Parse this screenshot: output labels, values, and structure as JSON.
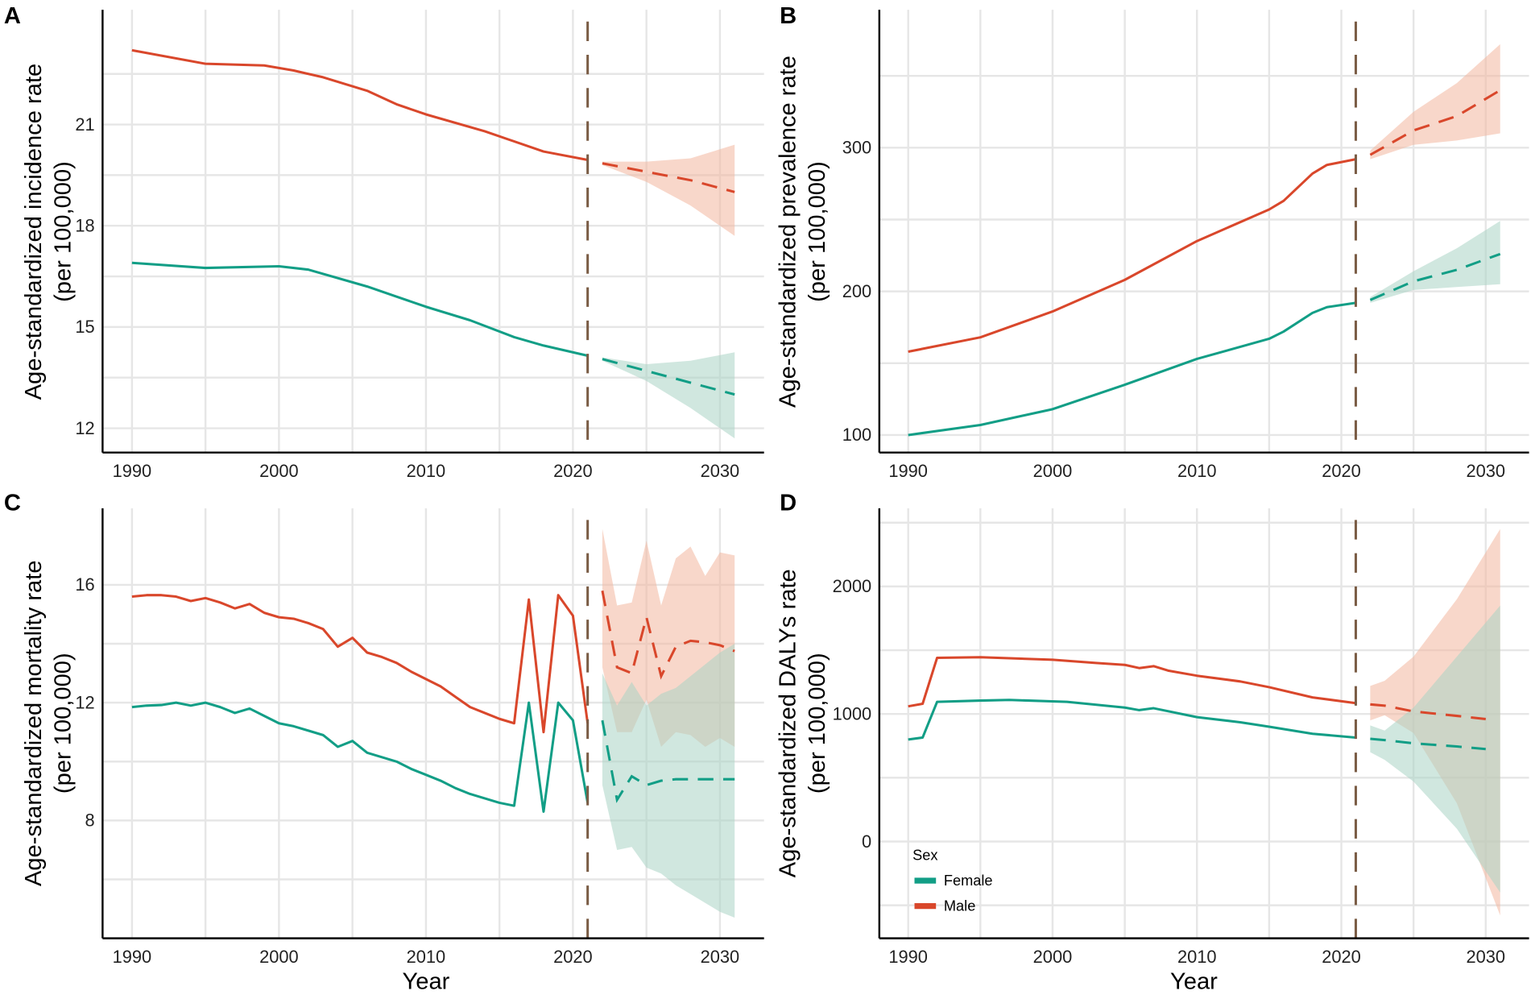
{
  "colors": {
    "Male": "#d9472b",
    "Female": "#129e86",
    "Male_ci": "#f2b79f",
    "Female_ci": "#a9d3c5",
    "vline": "#7a5c45",
    "grid": "#e6e6e6"
  },
  "legend": {
    "title": "Sex",
    "entries": [
      "Female",
      "Male"
    ]
  },
  "chart_data": [
    {
      "panel": "A",
      "type": "line",
      "xlabel": "",
      "ylabel": "Age-standardized incidence rate",
      "ylabel2": "(per 100,000)",
      "xlim": [
        1988,
        2033
      ],
      "ylim": [
        11.28,
        24.4
      ],
      "xticks": [
        1990,
        2000,
        2010,
        2020,
        2030
      ],
      "yticks": [
        12,
        15,
        18,
        21
      ],
      "ygrid": [
        12,
        13.5,
        15,
        16.5,
        18,
        19.5,
        21,
        22.5
      ],
      "vline": 2021,
      "series": [
        {
          "name": "Male",
          "x": [
            1990,
            1995,
            1999,
            2001,
            2003,
            2006,
            2008,
            2010,
            2014,
            2018,
            2021
          ],
          "y": [
            23.2,
            22.8,
            22.75,
            22.6,
            22.4,
            22.0,
            21.6,
            21.3,
            20.8,
            20.2,
            19.95
          ],
          "forecast": {
            "x": [
              2022,
              2025,
              2028,
              2031
            ],
            "y": [
              19.85,
              19.6,
              19.35,
              19.0
            ],
            "upper": [
              19.9,
              19.9,
              20.0,
              20.4
            ],
            "lower": [
              19.8,
              19.3,
              18.6,
              17.7
            ]
          }
        },
        {
          "name": "Female",
          "x": [
            1990,
            1995,
            2000,
            2002,
            2006,
            2008,
            2010,
            2013,
            2016,
            2018,
            2021
          ],
          "y": [
            16.9,
            16.75,
            16.8,
            16.7,
            16.2,
            15.9,
            15.6,
            15.2,
            14.7,
            14.45,
            14.15
          ],
          "forecast": {
            "x": [
              2022,
              2025,
              2028,
              2031
            ],
            "y": [
              14.05,
              13.7,
              13.35,
              13.0
            ],
            "upper": [
              14.1,
              13.9,
              14.0,
              14.25
            ],
            "lower": [
              14.0,
              13.4,
              12.6,
              11.7
            ]
          }
        }
      ]
    },
    {
      "panel": "B",
      "type": "line",
      "xlabel": "",
      "ylabel": "Age-standardized prevalence rate",
      "ylabel2": "(per 100,000)",
      "xlim": [
        1988,
        2033
      ],
      "ylim": [
        87.8,
        396
      ],
      "xticks": [
        1990,
        2000,
        2010,
        2020,
        2030
      ],
      "yticks": [
        100,
        200,
        300
      ],
      "ygrid": [
        100,
        150,
        200,
        250,
        300,
        350
      ],
      "vline": 2021,
      "series": [
        {
          "name": "Male",
          "x": [
            1990,
            1995,
            2000,
            2005,
            2010,
            2015,
            2016,
            2018,
            2019,
            2021
          ],
          "y": [
            158,
            168,
            186,
            208,
            235,
            257,
            263,
            282,
            288,
            292
          ],
          "forecast": {
            "x": [
              2022,
              2025,
              2028,
              2031
            ],
            "y": [
              295,
              312,
              322,
              340
            ],
            "upper": [
              298,
              325,
              345,
              372
            ],
            "lower": [
              292,
              302,
              305,
              310
            ]
          }
        },
        {
          "name": "Female",
          "x": [
            1990,
            1995,
            2000,
            2005,
            2010,
            2015,
            2016,
            2018,
            2019,
            2021
          ],
          "y": [
            100,
            107,
            118,
            135,
            153,
            167,
            172,
            185,
            189,
            192
          ],
          "forecast": {
            "x": [
              2022,
              2025,
              2028,
              2031
            ],
            "y": [
              194,
              207,
              215,
              226
            ],
            "upper": [
              196,
              214,
              230,
              249
            ],
            "lower": [
              192,
              201,
              203,
              205
            ]
          }
        }
      ]
    },
    {
      "panel": "C",
      "type": "line",
      "xlabel": "Year",
      "ylabel": "Age-standardized mortality rate",
      "ylabel2": "(per 100,000)",
      "xlim": [
        1988,
        2033
      ],
      "ylim": [
        4.0,
        18.6
      ],
      "xticks": [
        1990,
        2000,
        2010,
        2020,
        2030
      ],
      "yticks": [
        8,
        12,
        16
      ],
      "ygrid": [
        6,
        8,
        10,
        12,
        14,
        16
      ],
      "vline": 2021,
      "series": [
        {
          "name": "Male",
          "x": [
            1990,
            1991,
            1992,
            1993,
            1994,
            1995,
            1996,
            1997,
            1998,
            1999,
            2000,
            2001,
            2002,
            2003,
            2004,
            2005,
            2006,
            2007,
            2008,
            2009,
            2010,
            2011,
            2012,
            2013,
            2014,
            2015,
            2016,
            2017,
            2018,
            2019,
            2020,
            2021
          ],
          "y": [
            15.6,
            15.65,
            15.65,
            15.6,
            15.45,
            15.55,
            15.4,
            15.2,
            15.35,
            15.05,
            14.9,
            14.85,
            14.7,
            14.5,
            13.9,
            14.2,
            13.7,
            13.55,
            13.35,
            13.05,
            12.8,
            12.55,
            12.2,
            11.85,
            11.65,
            11.45,
            11.3,
            15.5,
            11.0,
            15.65,
            14.95,
            11.3
          ],
          "forecast": {
            "x": [
              2022,
              2023,
              2024,
              2025,
              2026,
              2027,
              2028,
              2029,
              2030,
              2031
            ],
            "y": [
              15.8,
              13.2,
              13.0,
              14.9,
              12.9,
              13.9,
              14.1,
              14.05,
              13.95,
              13.75
            ],
            "upper": [
              17.9,
              15.3,
              15.4,
              17.5,
              15.3,
              16.9,
              17.3,
              16.3,
              17.1,
              17.0
            ],
            "lower": [
              13.2,
              11.0,
              11.0,
              12.1,
              10.5,
              11.0,
              10.9,
              10.5,
              10.8,
              10.5
            ]
          }
        },
        {
          "name": "Female",
          "x": [
            1990,
            1991,
            1992,
            1993,
            1994,
            1995,
            1996,
            1997,
            1998,
            1999,
            2000,
            2001,
            2002,
            2003,
            2004,
            2005,
            2006,
            2007,
            2008,
            2009,
            2010,
            2011,
            2012,
            2013,
            2014,
            2015,
            2016,
            2017,
            2018,
            2019,
            2020,
            2021
          ],
          "y": [
            11.85,
            11.9,
            11.92,
            12.0,
            11.9,
            12.0,
            11.85,
            11.65,
            11.8,
            11.55,
            11.3,
            11.2,
            11.05,
            10.9,
            10.5,
            10.7,
            10.3,
            10.15,
            10.0,
            9.75,
            9.55,
            9.35,
            9.1,
            8.9,
            8.75,
            8.6,
            8.5,
            12.0,
            8.3,
            12.0,
            11.4,
            8.6
          ],
          "forecast": {
            "x": [
              2022,
              2023,
              2024,
              2025,
              2026,
              2027,
              2028,
              2029,
              2030,
              2031
            ],
            "y": [
              11.4,
              8.7,
              9.5,
              9.2,
              9.35,
              9.4,
              9.4,
              9.4,
              9.4,
              9.4
            ],
            "upper": [
              13.0,
              11.9,
              12.7,
              11.9,
              12.3,
              12.5,
              12.9,
              13.3,
              13.7,
              14.0
            ],
            "lower": [
              9.2,
              7.0,
              7.1,
              6.4,
              6.2,
              5.8,
              5.5,
              5.2,
              4.9,
              4.7
            ]
          }
        }
      ]
    },
    {
      "panel": "D",
      "type": "line",
      "xlabel": "Year",
      "ylabel": "Age-standardized DALYs rate",
      "ylabel2": "(per 100,000)",
      "xlim": [
        1988,
        2033
      ],
      "ylim": [
        -759,
        2613
      ],
      "xticks": [
        1990,
        2000,
        2010,
        2020,
        2030
      ],
      "yticks": [
        0,
        1000,
        2000
      ],
      "ygrid": [
        -500,
        0,
        500,
        1000,
        1500,
        2000,
        2500
      ],
      "vline": 2021,
      "series": [
        {
          "name": "Male",
          "x": [
            1990,
            1991,
            1992,
            1995,
            2000,
            2003,
            2005,
            2006,
            2007,
            2008,
            2010,
            2013,
            2015,
            2018,
            2021
          ],
          "y": [
            1060,
            1080,
            1440,
            1445,
            1425,
            1400,
            1385,
            1360,
            1375,
            1340,
            1300,
            1255,
            1210,
            1130,
            1085
          ],
          "forecast": {
            "x": [
              2022,
              2023,
              2025,
              2028,
              2030
            ],
            "y": [
              1075,
              1065,
              1020,
              985,
              960
            ],
            "ci_x": [
              2022,
              2023,
              2025,
              2028,
              2031
            ],
            "upper": [
              1220,
              1260,
              1450,
              1900,
              2450
            ],
            "lower": [
              950,
              990,
              850,
              300,
              -580
            ]
          }
        },
        {
          "name": "Female",
          "x": [
            1990,
            1991,
            1992,
            1995,
            1997,
            2001,
            2005,
            2006,
            2007,
            2010,
            2013,
            2015,
            2018,
            2021
          ],
          "y": [
            800,
            815,
            1095,
            1105,
            1110,
            1095,
            1050,
            1030,
            1045,
            975,
            935,
            900,
            845,
            815
          ],
          "forecast": {
            "x": [
              2022,
              2023,
              2025,
              2028,
              2030
            ],
            "y": [
              805,
              795,
              770,
              745,
              725
            ],
            "ci_x": [
              2022,
              2023,
              2025,
              2028,
              2031
            ],
            "upper": [
              910,
              870,
              1050,
              1450,
              1850
            ],
            "lower": [
              700,
              640,
              470,
              100,
              -400
            ]
          }
        }
      ]
    }
  ]
}
